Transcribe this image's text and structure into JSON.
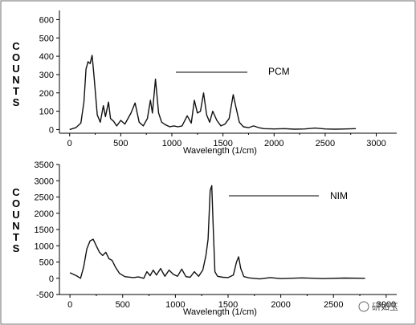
{
  "chart_data": [
    {
      "type": "line",
      "title": "",
      "xlabel": "Wavelength (1/cm)",
      "ylabel": "COUNTS",
      "xlim": [
        -100,
        3200
      ],
      "ylim": [
        -20,
        650
      ],
      "xticks": [
        0,
        500,
        1000,
        1500,
        2000,
        2500,
        3000
      ],
      "yticks": [
        0,
        100,
        200,
        300,
        400,
        500,
        600
      ],
      "legend": {
        "label": "PCM",
        "placement": "top-right"
      },
      "series": [
        {
          "name": "PCM",
          "x": [
            0,
            60,
            110,
            140,
            160,
            180,
            200,
            220,
            240,
            270,
            300,
            330,
            350,
            380,
            400,
            430,
            460,
            500,
            540,
            600,
            640,
            680,
            720,
            760,
            790,
            810,
            840,
            870,
            900,
            940,
            980,
            1020,
            1060,
            1100,
            1150,
            1190,
            1220,
            1250,
            1280,
            1310,
            1340,
            1370,
            1400,
            1440,
            1480,
            1520,
            1560,
            1600,
            1620,
            1660,
            1700,
            1750,
            1800,
            1850,
            1900,
            2000,
            2100,
            2200,
            2300,
            2400,
            2500,
            2600,
            2700,
            2800
          ],
          "y": [
            0,
            10,
            35,
            150,
            330,
            370,
            360,
            405,
            280,
            80,
            40,
            130,
            70,
            150,
            60,
            45,
            20,
            50,
            30,
            90,
            145,
            40,
            20,
            60,
            160,
            90,
            275,
            90,
            40,
            25,
            15,
            20,
            15,
            20,
            75,
            35,
            160,
            90,
            100,
            200,
            80,
            40,
            100,
            50,
            20,
            30,
            60,
            190,
            140,
            40,
            15,
            10,
            20,
            10,
            5,
            3,
            5,
            2,
            3,
            8,
            3,
            2,
            3,
            5
          ]
        }
      ]
    },
    {
      "type": "line",
      "title": "",
      "xlabel": "Wavelength (1/cm)",
      "ylabel": "COUNTS",
      "xlim": [
        -100,
        3100
      ],
      "ylim": [
        -500,
        3500
      ],
      "xticks": [
        0,
        500,
        1000,
        1500,
        2000,
        2500,
        3000
      ],
      "yticks": [
        -500,
        0,
        500,
        1000,
        1500,
        2000,
        2500,
        3000,
        3500
      ],
      "legend": {
        "label": "NIM",
        "placement": "top-right"
      },
      "series": [
        {
          "name": "NIM",
          "x": [
            0,
            60,
            100,
            130,
            160,
            190,
            220,
            250,
            280,
            310,
            340,
            370,
            400,
            430,
            470,
            520,
            600,
            650,
            700,
            730,
            760,
            790,
            820,
            860,
            900,
            940,
            980,
            1020,
            1060,
            1100,
            1140,
            1180,
            1220,
            1260,
            1290,
            1310,
            1330,
            1345,
            1360,
            1375,
            1400,
            1450,
            1500,
            1550,
            1580,
            1600,
            1620,
            1650,
            1700,
            1800,
            1900,
            2000,
            2200,
            2400,
            2600,
            2800
          ],
          "y": [
            170,
            80,
            0,
            350,
            900,
            1150,
            1200,
            1000,
            800,
            700,
            800,
            600,
            550,
            350,
            150,
            50,
            20,
            40,
            0,
            200,
            80,
            250,
            100,
            300,
            60,
            250,
            120,
            60,
            280,
            50,
            30,
            200,
            60,
            250,
            700,
            1200,
            2700,
            2850,
            1500,
            200,
            60,
            30,
            20,
            100,
            500,
            660,
            300,
            50,
            10,
            -20,
            20,
            -10,
            10,
            -10,
            5,
            0
          ]
        }
      ]
    }
  ],
  "watermark": "研如玉"
}
